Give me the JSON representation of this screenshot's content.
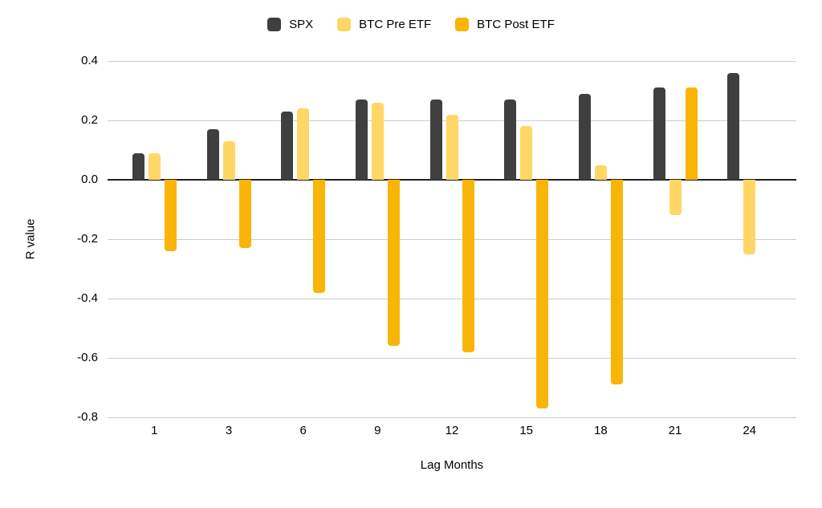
{
  "chart_data": {
    "type": "bar",
    "title": "",
    "categories": [
      "1",
      "3",
      "6",
      "9",
      "12",
      "15",
      "18",
      "21",
      "24"
    ],
    "series": [
      {
        "name": "SPX",
        "color": "#3f3f3f",
        "values": [
          0.09,
          0.17,
          0.23,
          0.27,
          0.27,
          0.27,
          0.29,
          0.31,
          0.36
        ]
      },
      {
        "name": "BTC Pre ETF",
        "color": "#ffd766",
        "values": [
          0.09,
          0.13,
          0.24,
          0.26,
          0.22,
          0.18,
          0.05,
          -0.12,
          -0.25
        ]
      },
      {
        "name": "BTC Post ETF",
        "color": "#f9b505",
        "values": [
          -0.24,
          -0.23,
          -0.38,
          -0.56,
          -0.58,
          -0.77,
          -0.69,
          0.31,
          null
        ]
      }
    ],
    "xlabel": "Lag Months",
    "ylabel": "R value",
    "ylim": [
      -0.8,
      0.4
    ],
    "yticks": [
      0.4,
      0.2,
      0.0,
      -0.2,
      -0.4,
      -0.6,
      -0.8
    ],
    "grid": true,
    "legend_position": "top",
    "colors": {
      "background": "#ffffff",
      "gridline": "#cccccc",
      "zero_line": "#212121",
      "text": "#000000"
    }
  }
}
